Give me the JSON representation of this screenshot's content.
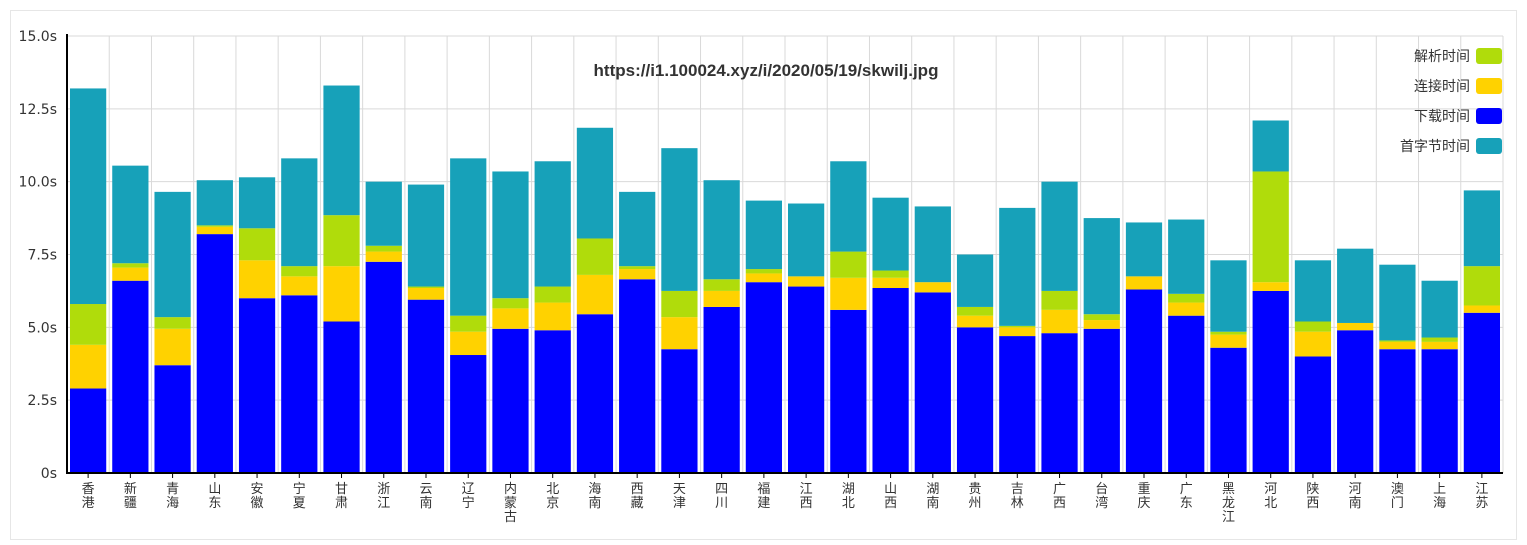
{
  "chart_data": {
    "type": "bar",
    "stacked": true,
    "title": "https://i1.100024.xyz/i/2020/05/19/skwilj.jpg",
    "xlabel": "",
    "ylabel": "",
    "ylim": [
      0,
      15
    ],
    "y_ticks": [
      "0s",
      "2.5s",
      "5.0s",
      "7.5s",
      "10.0s",
      "12.5s",
      "15.0s"
    ],
    "y_tick_values": [
      0,
      2.5,
      5,
      7.5,
      10,
      12.5,
      15
    ],
    "grid": true,
    "legend_position": "top-right",
    "categories": [
      "香港",
      "新疆",
      "青海",
      "山东",
      "安徽",
      "宁夏",
      "甘肃",
      "浙江",
      "云南",
      "辽宁",
      "内蒙古",
      "北京",
      "海南",
      "西藏",
      "天津",
      "四川",
      "福建",
      "江西",
      "湖北",
      "山西",
      "湖南",
      "贵州",
      "吉林",
      "广西",
      "台湾",
      "重庆",
      "广东",
      "黑龙江",
      "河北",
      "陕西",
      "河南",
      "澳门",
      "上海",
      "江苏"
    ],
    "series": [
      {
        "name": "下载时间",
        "color": "#0000ff",
        "values": [
          2.9,
          6.6,
          3.7,
          8.2,
          6.0,
          6.1,
          5.2,
          7.25,
          5.95,
          4.05,
          4.95,
          4.9,
          5.45,
          6.65,
          4.25,
          5.7,
          6.55,
          6.4,
          5.6,
          6.35,
          6.2,
          5.0,
          4.7,
          4.8,
          4.95,
          6.3,
          5.4,
          4.3,
          6.25,
          4.0,
          4.9,
          4.25,
          4.25,
          5.5
        ]
      },
      {
        "name": "连接时间",
        "color": "#ffd200",
        "values": [
          1.5,
          0.45,
          1.25,
          0.25,
          1.3,
          0.65,
          1.9,
          0.35,
          0.4,
          0.8,
          0.7,
          0.95,
          1.35,
          0.35,
          1.1,
          0.55,
          0.3,
          0.35,
          1.1,
          0.35,
          0.35,
          0.4,
          0.3,
          0.8,
          0.3,
          0.45,
          0.45,
          0.45,
          0.3,
          0.85,
          0.25,
          0.25,
          0.25,
          0.25
        ]
      },
      {
        "name": "解析时间",
        "color": "#b0dc0b",
        "values": [
          1.4,
          0.15,
          0.4,
          0.05,
          1.1,
          0.35,
          1.75,
          0.2,
          0.05,
          0.55,
          0.35,
          0.55,
          1.25,
          0.1,
          0.9,
          0.4,
          0.15,
          0.0,
          0.9,
          0.25,
          0.0,
          0.3,
          0.05,
          0.65,
          0.2,
          0.0,
          0.3,
          0.1,
          3.8,
          0.35,
          0.0,
          0.05,
          0.15,
          1.35
        ]
      },
      {
        "name": "首字节时间",
        "color": "#17a1b9",
        "values": [
          7.4,
          3.35,
          4.3,
          1.55,
          1.75,
          3.7,
          4.45,
          2.2,
          3.5,
          5.4,
          4.35,
          4.3,
          3.8,
          2.55,
          4.9,
          3.4,
          2.35,
          2.5,
          3.1,
          2.5,
          2.6,
          1.8,
          4.05,
          3.75,
          3.3,
          1.85,
          2.55,
          2.45,
          1.75,
          2.1,
          2.55,
          2.6,
          1.95,
          2.6
        ]
      }
    ],
    "legend_order": [
      "解析时间",
      "连接时间",
      "下载时间",
      "首字节时间"
    ]
  }
}
